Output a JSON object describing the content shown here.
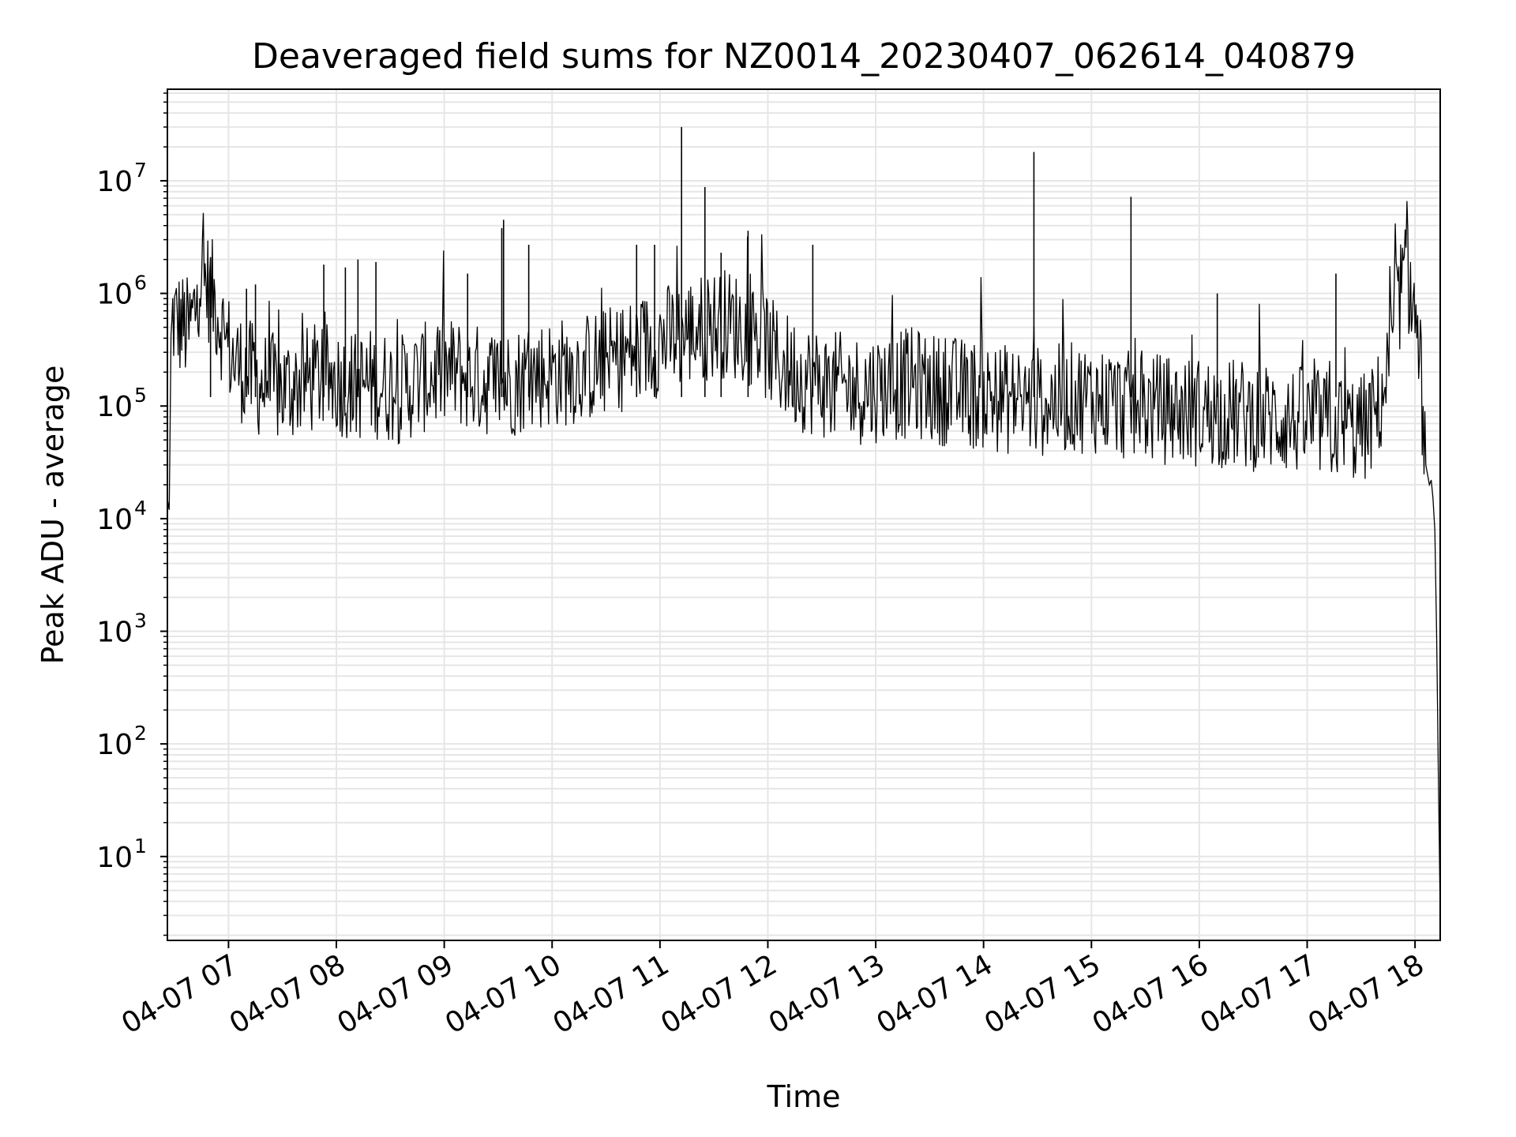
{
  "chart_data": {
    "type": "line",
    "title": "Deaveraged field sums for NZ0014_20230407_062614_040879",
    "xlabel": "Time",
    "ylabel": "Peak ADU - average",
    "yscale": "log",
    "ylim": [
      1.8,
      65000000
    ],
    "xlim": [
      "2023-04-07 06:26",
      "2023-04-07 18:14"
    ],
    "grid": true,
    "line_color": "#000000",
    "grid_color": "#e6e6e6",
    "x_ticks": [
      {
        "time": "2023-04-07 07:00",
        "label": "04-07 07"
      },
      {
        "time": "2023-04-07 08:00",
        "label": "04-07 08"
      },
      {
        "time": "2023-04-07 09:00",
        "label": "04-07 09"
      },
      {
        "time": "2023-04-07 10:00",
        "label": "04-07 10"
      },
      {
        "time": "2023-04-07 11:00",
        "label": "04-07 11"
      },
      {
        "time": "2023-04-07 12:00",
        "label": "04-07 12"
      },
      {
        "time": "2023-04-07 13:00",
        "label": "04-07 13"
      },
      {
        "time": "2023-04-07 14:00",
        "label": "04-07 14"
      },
      {
        "time": "2023-04-07 15:00",
        "label": "04-07 15"
      },
      {
        "time": "2023-04-07 16:00",
        "label": "04-07 16"
      },
      {
        "time": "2023-04-07 17:00",
        "label": "04-07 17"
      },
      {
        "time": "2023-04-07 18:00",
        "label": "04-07 18"
      }
    ],
    "y_ticks": [
      {
        "value": 10,
        "base": "10",
        "exp": "1"
      },
      {
        "value": 100,
        "base": "10",
        "exp": "2"
      },
      {
        "value": 1000,
        "base": "10",
        "exp": "3"
      },
      {
        "value": 10000,
        "base": "10",
        "exp": "4"
      },
      {
        "value": 100000,
        "base": "10",
        "exp": "5"
      },
      {
        "value": 1000000,
        "base": "10",
        "exp": "6"
      },
      {
        "value": 10000000,
        "base": "10",
        "exp": "7"
      }
    ],
    "series": [
      {
        "x": [
          "2023-04-07 06:26",
          "2023-04-07 06:27",
          "2023-04-07 06:28",
          "2023-04-07 06:29",
          "2023-04-07 06:32",
          "2023-04-07 06:35",
          "2023-04-07 06:38",
          "2023-04-07 06:40",
          "2023-04-07 06:42",
          "2023-04-07 06:44",
          "2023-04-07 06:48",
          "2023-04-07 06:52",
          "2023-04-07 06:55",
          "2023-04-07 06:58",
          "2023-04-07 07:03",
          "2023-04-07 07:10",
          "2023-04-07 07:20",
          "2023-04-07 07:30",
          "2023-04-07 07:40",
          "2023-04-07 07:50",
          "2023-04-07 08:00",
          "2023-04-07 08:10",
          "2023-04-07 08:20",
          "2023-04-07 08:35",
          "2023-04-07 08:50",
          "2023-04-07 09:05",
          "2023-04-07 09:20",
          "2023-04-07 09:35",
          "2023-04-07 09:50",
          "2023-04-07 10:05",
          "2023-04-07 10:20",
          "2023-04-07 10:35",
          "2023-04-07 10:50",
          "2023-04-07 11:00",
          "2023-04-07 11:10",
          "2023-04-07 11:15",
          "2023-04-07 11:25",
          "2023-04-07 11:35",
          "2023-04-07 11:45",
          "2023-04-07 11:55",
          "2023-04-07 12:05",
          "2023-04-07 12:20",
          "2023-04-07 12:35",
          "2023-04-07 12:50",
          "2023-04-07 13:05",
          "2023-04-07 13:20",
          "2023-04-07 13:35",
          "2023-04-07 13:50",
          "2023-04-07 14:05",
          "2023-04-07 14:20",
          "2023-04-07 14:35",
          "2023-04-07 14:50",
          "2023-04-07 15:05",
          "2023-04-07 15:20",
          "2023-04-07 15:35",
          "2023-04-07 15:50",
          "2023-04-07 16:05",
          "2023-04-07 16:20",
          "2023-04-07 16:35",
          "2023-04-07 16:50",
          "2023-04-07 17:05",
          "2023-04-07 17:20",
          "2023-04-07 17:30",
          "2023-04-07 17:35",
          "2023-04-07 17:40",
          "2023-04-07 17:45",
          "2023-04-07 17:48",
          "2023-04-07 17:51",
          "2023-04-07 17:54",
          "2023-04-07 17:57",
          "2023-04-07 18:00",
          "2023-04-07 18:03",
          "2023-04-07 18:06",
          "2023-04-07 18:08",
          "2023-04-07 18:09",
          "2023-04-07 18:10",
          "2023-04-07 18:11",
          "2023-04-07 18:12",
          "2023-04-07 18:13",
          "2023-04-07 18:14"
        ],
        "y": [
          15000,
          12000,
          300000,
          600000,
          550000,
          500000,
          450000,
          600000,
          800000,
          1500000,
          1200000,
          900000,
          600000,
          400000,
          250000,
          200000,
          150000,
          140000,
          160000,
          180000,
          170000,
          150000,
          160000,
          140000,
          180000,
          200000,
          170000,
          160000,
          190000,
          200000,
          220000,
          260000,
          320000,
          380000,
          420000,
          450000,
          500000,
          550000,
          500000,
          420000,
          250000,
          180000,
          150000,
          140000,
          150000,
          160000,
          140000,
          130000,
          120000,
          110000,
          110000,
          120000,
          115000,
          100000,
          95000,
          90000,
          88000,
          85000,
          80000,
          75000,
          70000,
          65000,
          62000,
          70000,
          100000,
          200000,
          500000,
          900000,
          1400000,
          1200000,
          600000,
          200000,
          30000,
          20000,
          22000,
          15000,
          8000,
          1000,
          50,
          3
        ]
      }
    ],
    "spikes": [
      {
        "x": "2023-04-07 06:50",
        "y": 2100000
      },
      {
        "x": "2023-04-07 07:10",
        "y": 1100000
      },
      {
        "x": "2023-04-07 07:15",
        "y": 1200000
      },
      {
        "x": "2023-04-07 07:53",
        "y": 1800000
      },
      {
        "x": "2023-04-07 08:05",
        "y": 1700000
      },
      {
        "x": "2023-04-07 08:12",
        "y": 2000000
      },
      {
        "x": "2023-04-07 08:22",
        "y": 1900000
      },
      {
        "x": "2023-04-07 09:13",
        "y": 1500000
      },
      {
        "x": "2023-04-07 09:32",
        "y": 3800000
      },
      {
        "x": "2023-04-07 09:33",
        "y": 4500000
      },
      {
        "x": "2023-04-07 09:47",
        "y": 2700000
      },
      {
        "x": "2023-04-07 10:47",
        "y": 2700000
      },
      {
        "x": "2023-04-07 10:57",
        "y": 2700000
      },
      {
        "x": "2023-04-07 11:12",
        "y": 30000000
      },
      {
        "x": "2023-04-07 11:25",
        "y": 8800000
      },
      {
        "x": "2023-04-07 11:34",
        "y": 2300000
      },
      {
        "x": "2023-04-07 11:49",
        "y": 3600000
      },
      {
        "x": "2023-04-07 12:25",
        "y": 2700000
      },
      {
        "x": "2023-04-07 14:28",
        "y": 18000000
      },
      {
        "x": "2023-04-07 15:22",
        "y": 7200000
      },
      {
        "x": "2023-04-07 16:10",
        "y": 1000000
      },
      {
        "x": "2023-04-07 17:16",
        "y": 1500000
      }
    ]
  }
}
